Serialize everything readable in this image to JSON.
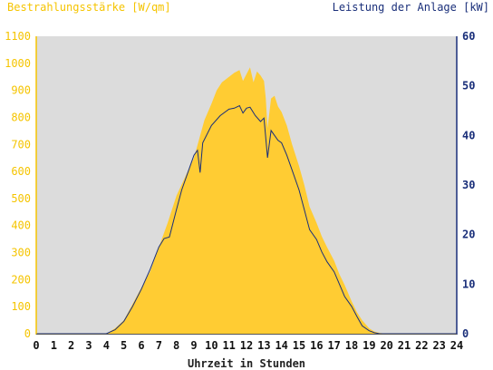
{
  "chart_data": {
    "type": "area",
    "title_left": "Bestrahlungsstärke [W/qm]",
    "title_right": "Leistung der Anlage [kW]",
    "xlabel": "Uhrzeit in Stunden",
    "xlim": [
      0,
      24
    ],
    "x_ticks": [
      "0",
      "1",
      "2",
      "3",
      "4",
      "5",
      "6",
      "7",
      "8",
      "9",
      "10",
      "11",
      "12",
      "13",
      "14",
      "15",
      "16",
      "17",
      "18",
      "19",
      "20",
      "21",
      "22",
      "23",
      "24"
    ],
    "y_left": {
      "lim": [
        0,
        1100
      ],
      "ticks": [
        "0",
        "100",
        "200",
        "300",
        "400",
        "500",
        "600",
        "700",
        "800",
        "900",
        "1000",
        "1100"
      ]
    },
    "y_right": {
      "lim": [
        0,
        60
      ],
      "ticks": [
        "0",
        "10",
        "20",
        "30",
        "40",
        "50",
        "60"
      ]
    },
    "grid": false,
    "background_color": "#dcdcdc",
    "series": [
      {
        "axis": "left",
        "style": "filled-area",
        "color": "#ffcc33",
        "x": [
          0,
          4,
          4.5,
          5,
          5.5,
          6,
          6.5,
          7,
          7.5,
          8,
          8.5,
          9,
          9.3,
          9.6,
          10,
          10.3,
          10.6,
          11,
          11.3,
          11.6,
          11.8,
          12,
          12.2,
          12.4,
          12.6,
          12.8,
          13,
          13.1,
          13.2,
          13.4,
          13.6,
          13.8,
          14,
          14.3,
          14.6,
          15,
          15.3,
          15.6,
          16,
          16.3,
          16.6,
          17,
          17.3,
          17.6,
          18,
          18.3,
          18.6,
          19,
          19.3,
          19.6,
          20,
          24
        ],
        "values": [
          0,
          0,
          20,
          50,
          110,
          170,
          230,
          320,
          410,
          510,
          580,
          650,
          720,
          790,
          850,
          900,
          930,
          950,
          965,
          975,
          935,
          960,
          985,
          930,
          970,
          955,
          935,
          870,
          760,
          870,
          880,
          840,
          820,
          770,
          700,
          620,
          550,
          470,
          410,
          360,
          320,
          270,
          220,
          180,
          120,
          80,
          50,
          20,
          8,
          3,
          0,
          0
        ]
      },
      {
        "axis": "right",
        "style": "line",
        "color": "#1a2f7a",
        "x": [
          0,
          4,
          4.5,
          5,
          5.5,
          6,
          6.5,
          7,
          7.3,
          7.6,
          8,
          8.3,
          8.6,
          9,
          9.2,
          9.35,
          9.5,
          10,
          10.5,
          11,
          11.3,
          11.6,
          11.8,
          12,
          12.2,
          12.5,
          12.8,
          13,
          13.2,
          13.4,
          13.6,
          13.8,
          14,
          14.3,
          14.6,
          15,
          15.3,
          15.6,
          16,
          16.3,
          16.6,
          17,
          17.3,
          17.6,
          18,
          18.3,
          18.6,
          19,
          19.3,
          19.6,
          20,
          24
        ],
        "values": [
          0,
          0,
          0.8,
          2.5,
          5.5,
          9,
          13,
          17.5,
          19.2,
          19.5,
          25,
          29,
          32,
          36,
          37,
          32.5,
          38.5,
          42,
          44,
          45.3,
          45.5,
          46,
          44.5,
          45.5,
          45.7,
          44,
          42.8,
          43.5,
          35.5,
          41,
          40,
          39,
          38.5,
          36,
          33,
          29,
          25,
          21,
          19,
          16.5,
          14.5,
          12.5,
          10,
          7.5,
          5.5,
          3.5,
          1.6,
          0.6,
          0.2,
          0,
          0,
          0
        ]
      }
    ]
  }
}
